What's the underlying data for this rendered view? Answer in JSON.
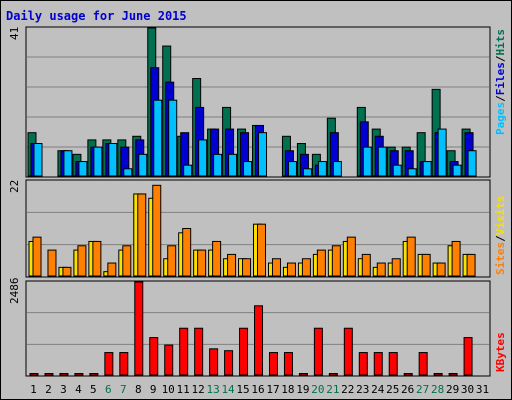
{
  "chart_data": {
    "type": "bar",
    "title": "Daily usage for June 2015",
    "days": [
      "1",
      "2",
      "3",
      "4",
      "5",
      "6",
      "7",
      "8",
      "9",
      "10",
      "11",
      "12",
      "13",
      "14",
      "15",
      "16",
      "17",
      "18",
      "19",
      "20",
      "21",
      "22",
      "23",
      "24",
      "25",
      "26",
      "27",
      "28",
      "29",
      "30",
      "31"
    ],
    "weekend_days": [
      "6",
      "7",
      "13",
      "14",
      "20",
      "21",
      "27",
      "28"
    ],
    "panels": [
      {
        "name": "hits-files-pages",
        "scale_max_label": "41",
        "ylim": [
          0,
          41
        ],
        "legend": [
          "Pages",
          "/",
          "Files",
          "/",
          "Hits"
        ],
        "series": [
          {
            "name": "Hits",
            "color": "#007050",
            "values": [
              12,
              0,
              7,
              6,
              10,
              10,
              10,
              11,
              41,
              36,
              11,
              27,
              13,
              19,
              13,
              14,
              0,
              11,
              9,
              6,
              16,
              0,
              19,
              13,
              8,
              8,
              12,
              24,
              7,
              13,
              0
            ]
          },
          {
            "name": "Files",
            "color": "#0000d0",
            "values": [
              9,
              0,
              7,
              4,
              8,
              9,
              8,
              10,
              30,
              26,
              12,
              19,
              13,
              13,
              12,
              14,
              0,
              7,
              6,
              3,
              12,
              0,
              15,
              11,
              7,
              7,
              4,
              12,
              4,
              12,
              0
            ]
          },
          {
            "name": "Pages",
            "color": "#00c0ff",
            "values": [
              9,
              0,
              7,
              4,
              8,
              9,
              2,
              6,
              21,
              21,
              3,
              10,
              6,
              6,
              4,
              12,
              0,
              4,
              2,
              4,
              4,
              0,
              8,
              8,
              3,
              2,
              4,
              13,
              3,
              7,
              0
            ]
          }
        ]
      },
      {
        "name": "visits-sites",
        "scale_max_label": "22",
        "ylim": [
          0,
          22
        ],
        "legend": [
          "Sites",
          "/",
          "Visits"
        ],
        "series": [
          {
            "name": "Visits",
            "color": "#f8e000",
            "values": [
              8,
              0,
              2,
              6,
              8,
              1,
              6,
              19,
              18,
              4,
              10,
              6,
              6,
              4,
              4,
              12,
              3,
              2,
              3,
              5,
              6,
              8,
              4,
              2,
              3,
              8,
              5,
              3,
              7,
              5,
              0
            ]
          },
          {
            "name": "Sites",
            "color": "#ff8000",
            "values": [
              9,
              6,
              2,
              7,
              8,
              3,
              7,
              19,
              21,
              7,
              11,
              6,
              8,
              5,
              4,
              12,
              4,
              3,
              4,
              6,
              7,
              9,
              5,
              3,
              4,
              9,
              5,
              3,
              8,
              5,
              0
            ]
          }
        ]
      },
      {
        "name": "kbytes",
        "scale_max_label": "2486",
        "ylim": [
          0,
          2486
        ],
        "legend": [
          "KBytes"
        ],
        "series": [
          {
            "name": "KBytes",
            "color": "#ff0000",
            "values": [
              40,
              40,
              40,
              40,
              40,
              600,
              600,
              2486,
              1000,
              800,
              1250,
              1250,
              700,
              650,
              1250,
              1850,
              600,
              600,
              40,
              1250,
              40,
              1250,
              600,
              600,
              600,
              40,
              600,
              40,
              40,
              1000,
              0
            ]
          }
        ]
      }
    ]
  }
}
